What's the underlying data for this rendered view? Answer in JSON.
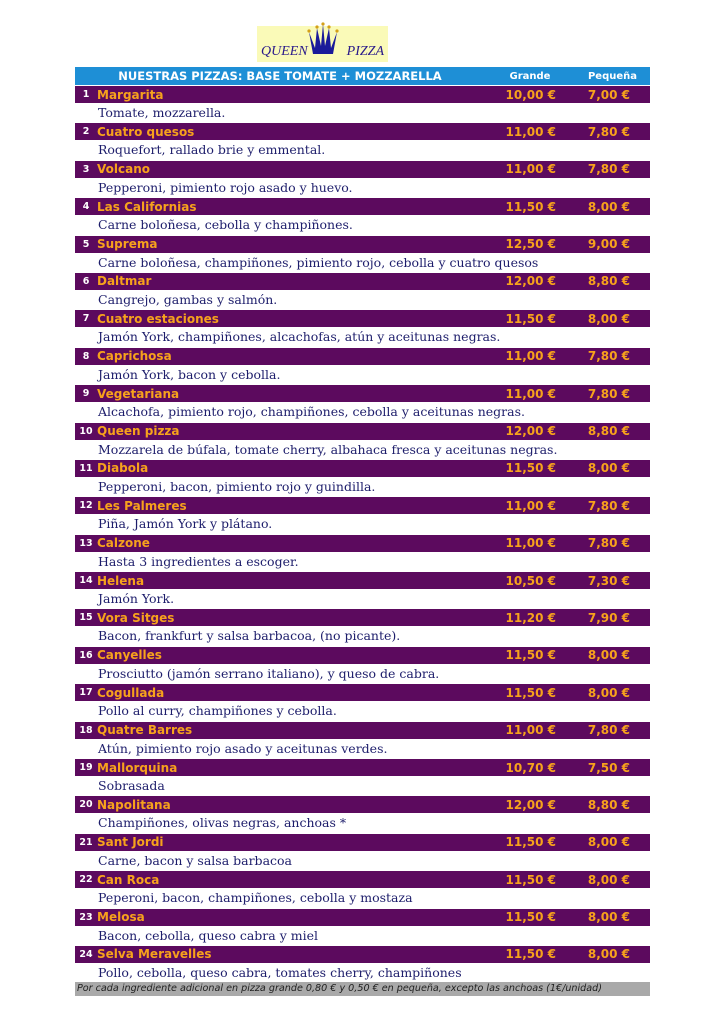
{
  "logo": {
    "text_left": "QUEEN",
    "text_right": "PIZZA"
  },
  "header": {
    "title": "NUESTRAS PIZZAS: BASE TOMATE + MOZZARELLA",
    "col_grande": "Grande",
    "col_pequena": "Pequeña"
  },
  "colors": {
    "header": "#1e8fd6",
    "item_bar": "#5c0a5e",
    "item_name": "#f7a21c",
    "footer": "#a9a9a9"
  },
  "items": [
    {
      "n": "1",
      "name": "Margarita",
      "grande": "10,00 €",
      "pequena": "7,00 €",
      "desc": "Tomate, mozzarella."
    },
    {
      "n": "2",
      "name": "Cuatro quesos",
      "grande": "11,00 €",
      "pequena": "7,80 €",
      "desc": "Roquefort, rallado brie y emmental."
    },
    {
      "n": "3",
      "name": "Volcano",
      "grande": "11,00 €",
      "pequena": "7,80 €",
      "desc": "Pepperoni, pimiento rojo asado y huevo."
    },
    {
      "n": "4",
      "name": "Las Californias",
      "grande": "11,50 €",
      "pequena": "8,00 €",
      "desc": "Carne boloñesa, cebolla y  champiñones."
    },
    {
      "n": "5",
      "name": "Suprema",
      "grande": "12,50 €",
      "pequena": "9,00 €",
      "desc": "Carne boloñesa, champiñones, pimiento rojo, cebolla y cuatro quesos"
    },
    {
      "n": "6",
      "name": "Daltmar",
      "grande": "12,00 €",
      "pequena": "8,80 €",
      "desc": "Cangrejo, gambas y salmón."
    },
    {
      "n": "7",
      "name": "Cuatro estaciones",
      "grande": "11,50 €",
      "pequena": "8,00 €",
      "desc": "Jamón York, champiñones, alcachofas, atún y aceitunas negras."
    },
    {
      "n": "8",
      "name": "Caprichosa",
      "grande": "11,00 €",
      "pequena": "7,80 €",
      "desc": "Jamón York, bacon y cebolla."
    },
    {
      "n": "9",
      "name": "Vegetariana",
      "grande": "11,00 €",
      "pequena": "7,80 €",
      "desc": "Alcachofa, pimiento rojo, champiñones, cebolla y aceitunas negras."
    },
    {
      "n": "10",
      "name": "Queen pizza",
      "grande": "12,00 €",
      "pequena": "8,80 €",
      "desc": "Mozzarela de búfala, tomate cherry, albahaca fresca y aceitunas negras."
    },
    {
      "n": "11",
      "name": "Diabola",
      "grande": "11,50 €",
      "pequena": "8,00 €",
      "desc": "Pepperoni, bacon, pimiento rojo y guindilla."
    },
    {
      "n": "12",
      "name": "Les Palmeres",
      "grande": "11,00 €",
      "pequena": "7,80 €",
      "desc": "Piña, Jamón York y plátano."
    },
    {
      "n": "13",
      "name": "Calzone",
      "grande": "11,00 €",
      "pequena": "7,80 €",
      "desc": "Hasta 3 ingredientes a escoger."
    },
    {
      "n": "14",
      "name": "Helena",
      "grande": "10,50 €",
      "pequena": "7,30 €",
      "desc": "Jamón York."
    },
    {
      "n": "15",
      "name": "Vora Sitges",
      "grande": "11,20 €",
      "pequena": "7,90 €",
      "desc": "Bacon, frankfurt y salsa barbacoa, (no picante)."
    },
    {
      "n": "16",
      "name": "Canyelles",
      "grande": "11,50 €",
      "pequena": "8,00 €",
      "desc": "Prosciutto (jamón serrano italiano), y queso de cabra."
    },
    {
      "n": "17",
      "name": "Cogullada",
      "grande": "11,50 €",
      "pequena": "8,00 €",
      "desc": "Pollo al curry, champiñones y cebolla."
    },
    {
      "n": "18",
      "name": "Quatre Barres",
      "grande": "11,00 €",
      "pequena": "7,80 €",
      "desc": "Atún, pimiento rojo asado y aceitunas verdes."
    },
    {
      "n": "19",
      "name": "Mallorquina",
      "grande": "10,70 €",
      "pequena": "7,50 €",
      "desc": "Sobrasada"
    },
    {
      "n": "20",
      "name": "Napolitana",
      "grande": "12,00 €",
      "pequena": "8,80 €",
      "desc": "Champiñones, olivas negras, anchoas *"
    },
    {
      "n": "21",
      "name": "Sant Jordi",
      "grande": "11,50 €",
      "pequena": "8,00 €",
      "desc": "Carne, bacon y salsa barbacoa"
    },
    {
      "n": "22",
      "name": "Can Roca",
      "grande": "11,50 €",
      "pequena": "8,00 €",
      "desc": "Peperoni, bacon, champiñones, cebolla y mostaza"
    },
    {
      "n": "23",
      "name": "Melosa",
      "grande": "11,50 €",
      "pequena": "8,00 €",
      "desc": "Bacon, cebolla, queso cabra y miel"
    },
    {
      "n": "24",
      "name": "Selva Meravelles",
      "grande": "11,50 €",
      "pequena": "8,00 €",
      "desc": "Pollo, cebolla, queso cabra, tomates cherry, champiñones"
    }
  ],
  "footer": "Por cada ingrediente adicional en pizza grande 0,80 € y 0,50 € en  pequeña, excepto las anchoas (1€/unidad)"
}
